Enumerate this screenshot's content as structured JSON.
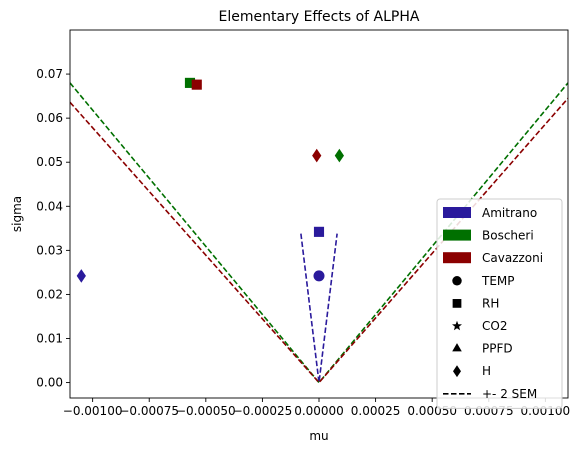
{
  "chart_data": {
    "type": "scatter",
    "title": "Elementary Effects of ALPHA",
    "xlabel": "mu",
    "ylabel": "sigma",
    "xlim": [
      -0.0011,
      0.0011
    ],
    "ylim": [
      -0.0035,
      0.08
    ],
    "x_ticks": [
      -0.001,
      -0.00075,
      -0.0005,
      -0.00025,
      0.0,
      0.00025,
      0.0005,
      0.00075,
      0.001
    ],
    "x_tick_labels": [
      "−0.00100",
      "−0.00075",
      "−0.00050",
      "−0.00025",
      "0.00000",
      "0.00025",
      "0.00050",
      "0.00075",
      "0.00100"
    ],
    "y_ticks": [
      0.0,
      0.01,
      0.02,
      0.03,
      0.04,
      0.05,
      0.06,
      0.07
    ],
    "y_tick_labels": [
      "0.00",
      "0.01",
      "0.02",
      "0.03",
      "0.04",
      "0.05",
      "0.06",
      "0.07"
    ],
    "grid": false,
    "legend_position": "lower-right",
    "groups": [
      {
        "name": "Amitrano",
        "color": "#2a1a9c"
      },
      {
        "name": "Boscheri",
        "color": "#007000"
      },
      {
        "name": "Cavazzoni",
        "color": "#8b0000"
      }
    ],
    "markers": [
      {
        "name": "TEMP",
        "marker": "circle"
      },
      {
        "name": "RH",
        "marker": "square"
      },
      {
        "name": "CO2",
        "marker": "star"
      },
      {
        "name": "PPFD",
        "marker": "triangle"
      },
      {
        "name": "H",
        "marker": "diamond"
      }
    ],
    "sem_label": "+- 2 SEM",
    "points": [
      {
        "group": "Amitrano",
        "variable": "TEMP",
        "x": 0.0,
        "y": 0.0242
      },
      {
        "group": "Amitrano",
        "variable": "RH",
        "x": 0.0,
        "y": 0.0342
      },
      {
        "group": "Amitrano",
        "variable": "H",
        "x": -0.00105,
        "y": 0.0242
      },
      {
        "group": "Boscheri",
        "variable": "RH",
        "x": -0.00057,
        "y": 0.068
      },
      {
        "group": "Boscheri",
        "variable": "H",
        "x": 9e-05,
        "y": 0.0515
      },
      {
        "group": "Cavazzoni",
        "variable": "RH",
        "x": -0.00054,
        "y": 0.0676
      },
      {
        "group": "Cavazzoni",
        "variable": "H",
        "x": -1e-05,
        "y": 0.0515
      }
    ],
    "sem_lines": [
      {
        "group": "Amitrano",
        "points": [
          [
            -8e-05,
            0.0338
          ],
          [
            0.0,
            0.0
          ],
          [
            8e-05,
            0.0338
          ]
        ]
      },
      {
        "group": "Boscheri",
        "points": [
          [
            -0.0011,
            0.068
          ],
          [
            0.0,
            0.0
          ],
          [
            0.0011,
            0.068
          ]
        ]
      },
      {
        "group": "Cavazzoni",
        "points": [
          [
            -0.0011,
            0.0636
          ],
          [
            0.0,
            0.0
          ],
          [
            0.0011,
            0.0645
          ]
        ]
      }
    ]
  }
}
